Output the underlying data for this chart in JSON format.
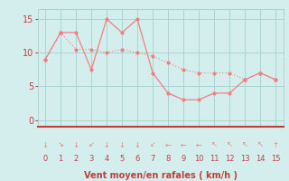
{
  "x": [
    0,
    1,
    2,
    3,
    4,
    5,
    6,
    7,
    8,
    9,
    10,
    11,
    12,
    13,
    14,
    15
  ],
  "y_rafales": [
    9,
    13,
    13,
    7.5,
    15,
    13,
    15,
    7,
    4,
    3,
    3,
    4,
    4,
    6,
    7,
    6
  ],
  "y_moyen": [
    9,
    13,
    10.5,
    10.5,
    10,
    10.5,
    10,
    9.5,
    8.5,
    7.5,
    7,
    7,
    7,
    6,
    7,
    6
  ],
  "line_color": "#f08080",
  "bg_color": "#d4eeee",
  "grid_color": "#aad4d4",
  "xlabel": "Vent moyen/en rafales ( km/h )",
  "ylabel_ticks": [
    0,
    5,
    10,
    15
  ],
  "xlim": [
    -0.5,
    15.5
  ],
  "ylim": [
    -1,
    16.5
  ],
  "arrow_symbols": [
    "↓",
    "↘",
    "↓",
    "↙",
    "↓",
    "↓",
    "↓",
    "↙",
    "←",
    "←",
    "←",
    "↖",
    "↖",
    "↖",
    "↖",
    "↑"
  ],
  "xlabel_fontsize": 7,
  "tick_fontsize": 7,
  "arrow_fontsize": 6
}
